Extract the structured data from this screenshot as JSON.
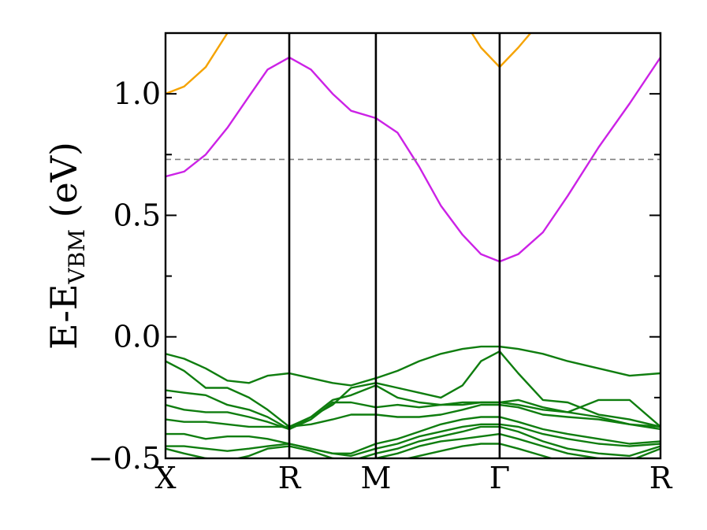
{
  "chart_data": {
    "type": "line",
    "title": "",
    "xlabel": "",
    "ylabel_main": "E-E",
    "ylabel_sub": "VBM",
    "ylabel_unit": " (eV)",
    "ylim": [
      -0.5,
      1.25
    ],
    "yticks": [
      -0.5,
      0.0,
      0.5,
      1.0
    ],
    "ytick_labels": [
      "−0.5",
      "0.0",
      "0.5",
      "1.0"
    ],
    "y_minor_ticks": [
      -0.25,
      0.25,
      0.75
    ],
    "xlim": [
      0,
      8
    ],
    "kpoints": [
      {
        "label": "X",
        "x": 0
      },
      {
        "label": "R",
        "x": 2.0
      },
      {
        "label": "M",
        "x": 3.4
      },
      {
        "label": "Γ",
        "x": 5.4
      },
      {
        "label": "R",
        "x": 8.0
      }
    ],
    "reference_line": {
      "y": 0.73,
      "style": "dashed",
      "color": "#808080"
    },
    "colors": {
      "conduction_upper": "#f5a300",
      "conduction_lowest": "#cc22e6",
      "valence": "#0f7d0f",
      "axis": "#000000"
    },
    "series": [
      {
        "role": "conduction_upper",
        "color": "#f5a300",
        "x": [
          0,
          0.3,
          0.65,
          1.0
        ],
        "y": [
          1.0,
          1.03,
          1.11,
          1.25
        ]
      },
      {
        "role": "conduction_upper",
        "color": "#f5a300",
        "x": [
          4.95,
          5.1,
          5.4,
          5.7,
          5.9
        ],
        "y": [
          1.25,
          1.19,
          1.11,
          1.19,
          1.25
        ]
      },
      {
        "role": "conduction_lowest",
        "color": "#cc22e6",
        "x": [
          0,
          0.3,
          0.65,
          1.0,
          1.35,
          1.65,
          2.0,
          2.35,
          2.7,
          3.0,
          3.4,
          3.75,
          4.1,
          4.45,
          4.8,
          5.1,
          5.4,
          5.7,
          6.1,
          6.5,
          7.0,
          7.5,
          8.0
        ],
        "y": [
          0.66,
          0.68,
          0.75,
          0.86,
          0.99,
          1.1,
          1.15,
          1.1,
          1.0,
          0.93,
          0.9,
          0.84,
          0.7,
          0.54,
          0.42,
          0.34,
          0.31,
          0.34,
          0.43,
          0.58,
          0.78,
          0.96,
          1.15
        ]
      },
      {
        "role": "valence",
        "color": "#0f7d0f",
        "x": [
          0,
          0.3,
          0.65,
          1.0,
          1.35,
          1.65,
          2.0,
          2.35,
          2.7,
          3.0,
          3.4,
          3.75,
          4.1,
          4.45,
          4.8,
          5.1,
          5.4,
          5.7,
          6.1,
          6.5,
          7.0,
          7.5,
          8.0
        ],
        "y": [
          -0.07,
          -0.09,
          -0.13,
          -0.18,
          -0.19,
          -0.16,
          -0.15,
          -0.17,
          -0.19,
          -0.2,
          -0.17,
          -0.14,
          -0.1,
          -0.07,
          -0.05,
          -0.04,
          -0.04,
          -0.05,
          -0.07,
          -0.1,
          -0.13,
          -0.16,
          -0.15
        ]
      },
      {
        "role": "valence",
        "color": "#0f7d0f",
        "x": [
          0,
          0.3,
          0.65,
          1.0,
          1.35,
          1.65,
          2.0,
          2.35,
          2.7,
          3.0,
          3.4,
          3.75,
          4.1,
          4.45,
          4.8,
          5.1,
          5.4,
          5.7,
          6.1,
          6.5,
          7.0,
          7.5,
          8.0
        ],
        "y": [
          -0.1,
          -0.14,
          -0.21,
          -0.21,
          -0.25,
          -0.3,
          -0.37,
          -0.33,
          -0.28,
          -0.21,
          -0.19,
          -0.21,
          -0.23,
          -0.25,
          -0.2,
          -0.1,
          -0.06,
          -0.15,
          -0.26,
          -0.27,
          -0.32,
          -0.34,
          -0.37
        ]
      },
      {
        "role": "valence",
        "color": "#0f7d0f",
        "x": [
          0,
          0.3,
          0.65,
          1.0,
          1.35,
          1.65,
          2.0,
          2.35,
          2.7,
          3.0,
          3.4,
          3.75,
          4.1,
          4.45,
          4.8,
          5.1,
          5.4,
          5.7,
          6.1,
          6.5,
          7.0,
          7.5,
          8.0
        ],
        "y": [
          -0.22,
          -0.23,
          -0.24,
          -0.28,
          -0.3,
          -0.33,
          -0.38,
          -0.33,
          -0.26,
          -0.24,
          -0.2,
          -0.25,
          -0.27,
          -0.28,
          -0.28,
          -0.27,
          -0.27,
          -0.28,
          -0.3,
          -0.31,
          -0.33,
          -0.36,
          -0.38
        ]
      },
      {
        "role": "valence",
        "color": "#0f7d0f",
        "x": [
          0,
          0.3,
          0.65,
          1.0,
          1.35,
          1.65,
          2.0,
          2.35,
          2.7,
          3.0,
          3.4,
          3.75,
          4.1,
          4.45,
          4.8,
          5.1,
          5.4,
          5.7,
          6.1,
          6.5,
          7.0,
          7.5,
          8.0
        ],
        "y": [
          -0.28,
          -0.3,
          -0.31,
          -0.31,
          -0.33,
          -0.35,
          -0.38,
          -0.34,
          -0.27,
          -0.27,
          -0.29,
          -0.28,
          -0.29,
          -0.28,
          -0.27,
          -0.27,
          -0.27,
          -0.26,
          -0.29,
          -0.31,
          -0.26,
          -0.26,
          -0.37
        ]
      },
      {
        "role": "valence",
        "color": "#0f7d0f",
        "x": [
          0,
          0.3,
          0.65,
          1.0,
          1.35,
          1.65,
          2.0,
          2.35,
          2.7,
          3.0,
          3.4,
          3.75,
          4.1,
          4.45,
          4.8,
          5.1,
          5.4,
          5.7,
          6.1,
          6.5,
          7.0,
          7.5,
          8.0
        ],
        "y": [
          -0.34,
          -0.35,
          -0.35,
          -0.36,
          -0.37,
          -0.37,
          -0.37,
          -0.36,
          -0.34,
          -0.32,
          -0.32,
          -0.33,
          -0.33,
          -0.32,
          -0.3,
          -0.28,
          -0.28,
          -0.29,
          -0.32,
          -0.33,
          -0.34,
          -0.36,
          -0.37
        ]
      },
      {
        "role": "valence",
        "color": "#0f7d0f",
        "x": [
          0,
          0.3,
          0.65,
          1.0,
          1.35,
          1.65,
          2.0,
          2.35,
          2.7,
          3.0,
          3.4,
          3.75,
          4.1,
          4.45,
          4.8,
          5.1,
          5.4,
          5.7,
          6.1,
          6.5,
          7.0,
          7.5,
          8.0
        ],
        "y": [
          -0.4,
          -0.4,
          -0.42,
          -0.41,
          -0.41,
          -0.42,
          -0.44,
          -0.46,
          -0.48,
          -0.48,
          -0.44,
          -0.42,
          -0.39,
          -0.36,
          -0.34,
          -0.33,
          -0.33,
          -0.35,
          -0.38,
          -0.4,
          -0.42,
          -0.44,
          -0.43
        ]
      },
      {
        "role": "valence",
        "color": "#0f7d0f",
        "x": [
          0,
          0.3,
          0.65,
          1.0,
          1.35,
          1.65,
          2.0,
          2.35,
          2.7,
          3.0,
          3.4,
          3.75,
          4.1,
          4.45,
          4.8,
          5.1,
          5.4,
          5.7,
          6.1,
          6.5,
          7.0,
          7.5,
          8.0
        ],
        "y": [
          -0.45,
          -0.45,
          -0.46,
          -0.47,
          -0.46,
          -0.45,
          -0.44,
          -0.46,
          -0.48,
          -0.49,
          -0.46,
          -0.44,
          -0.41,
          -0.39,
          -0.37,
          -0.36,
          -0.36,
          -0.37,
          -0.4,
          -0.42,
          -0.44,
          -0.45,
          -0.44
        ]
      },
      {
        "role": "valence",
        "color": "#0f7d0f",
        "x": [
          0,
          0.3,
          0.65,
          1.0,
          1.35,
          1.65,
          2.0,
          2.35,
          2.7,
          3.0,
          3.4,
          3.75,
          4.1,
          4.45,
          4.8,
          5.1,
          5.4,
          5.7,
          6.1,
          6.5,
          7.0,
          7.5,
          8.0
        ],
        "y": [
          -0.46,
          -0.48,
          -0.5,
          -0.51,
          -0.49,
          -0.46,
          -0.45,
          -0.47,
          -0.5,
          -0.51,
          -0.48,
          -0.46,
          -0.43,
          -0.41,
          -0.39,
          -0.37,
          -0.37,
          -0.39,
          -0.43,
          -0.46,
          -0.48,
          -0.49,
          -0.45
        ]
      },
      {
        "role": "valence",
        "color": "#0f7d0f",
        "x": [
          3.0,
          3.4,
          3.75,
          4.1,
          4.45,
          4.8,
          5.1,
          5.4,
          5.7,
          6.1,
          6.5,
          7.0,
          7.5,
          8.0
        ],
        "y": [
          -0.52,
          -0.5,
          -0.48,
          -0.45,
          -0.43,
          -0.42,
          -0.41,
          -0.4,
          -0.42,
          -0.45,
          -0.48,
          -0.5,
          -0.51,
          -0.46
        ]
      },
      {
        "role": "valence",
        "color": "#0f7d0f",
        "x": [
          3.4,
          3.75,
          4.1,
          4.45,
          4.8,
          5.1,
          5.4,
          5.7,
          6.1,
          6.5
        ],
        "y": [
          -0.53,
          -0.51,
          -0.49,
          -0.47,
          -0.45,
          -0.44,
          -0.44,
          -0.46,
          -0.49,
          -0.52
        ]
      }
    ]
  }
}
